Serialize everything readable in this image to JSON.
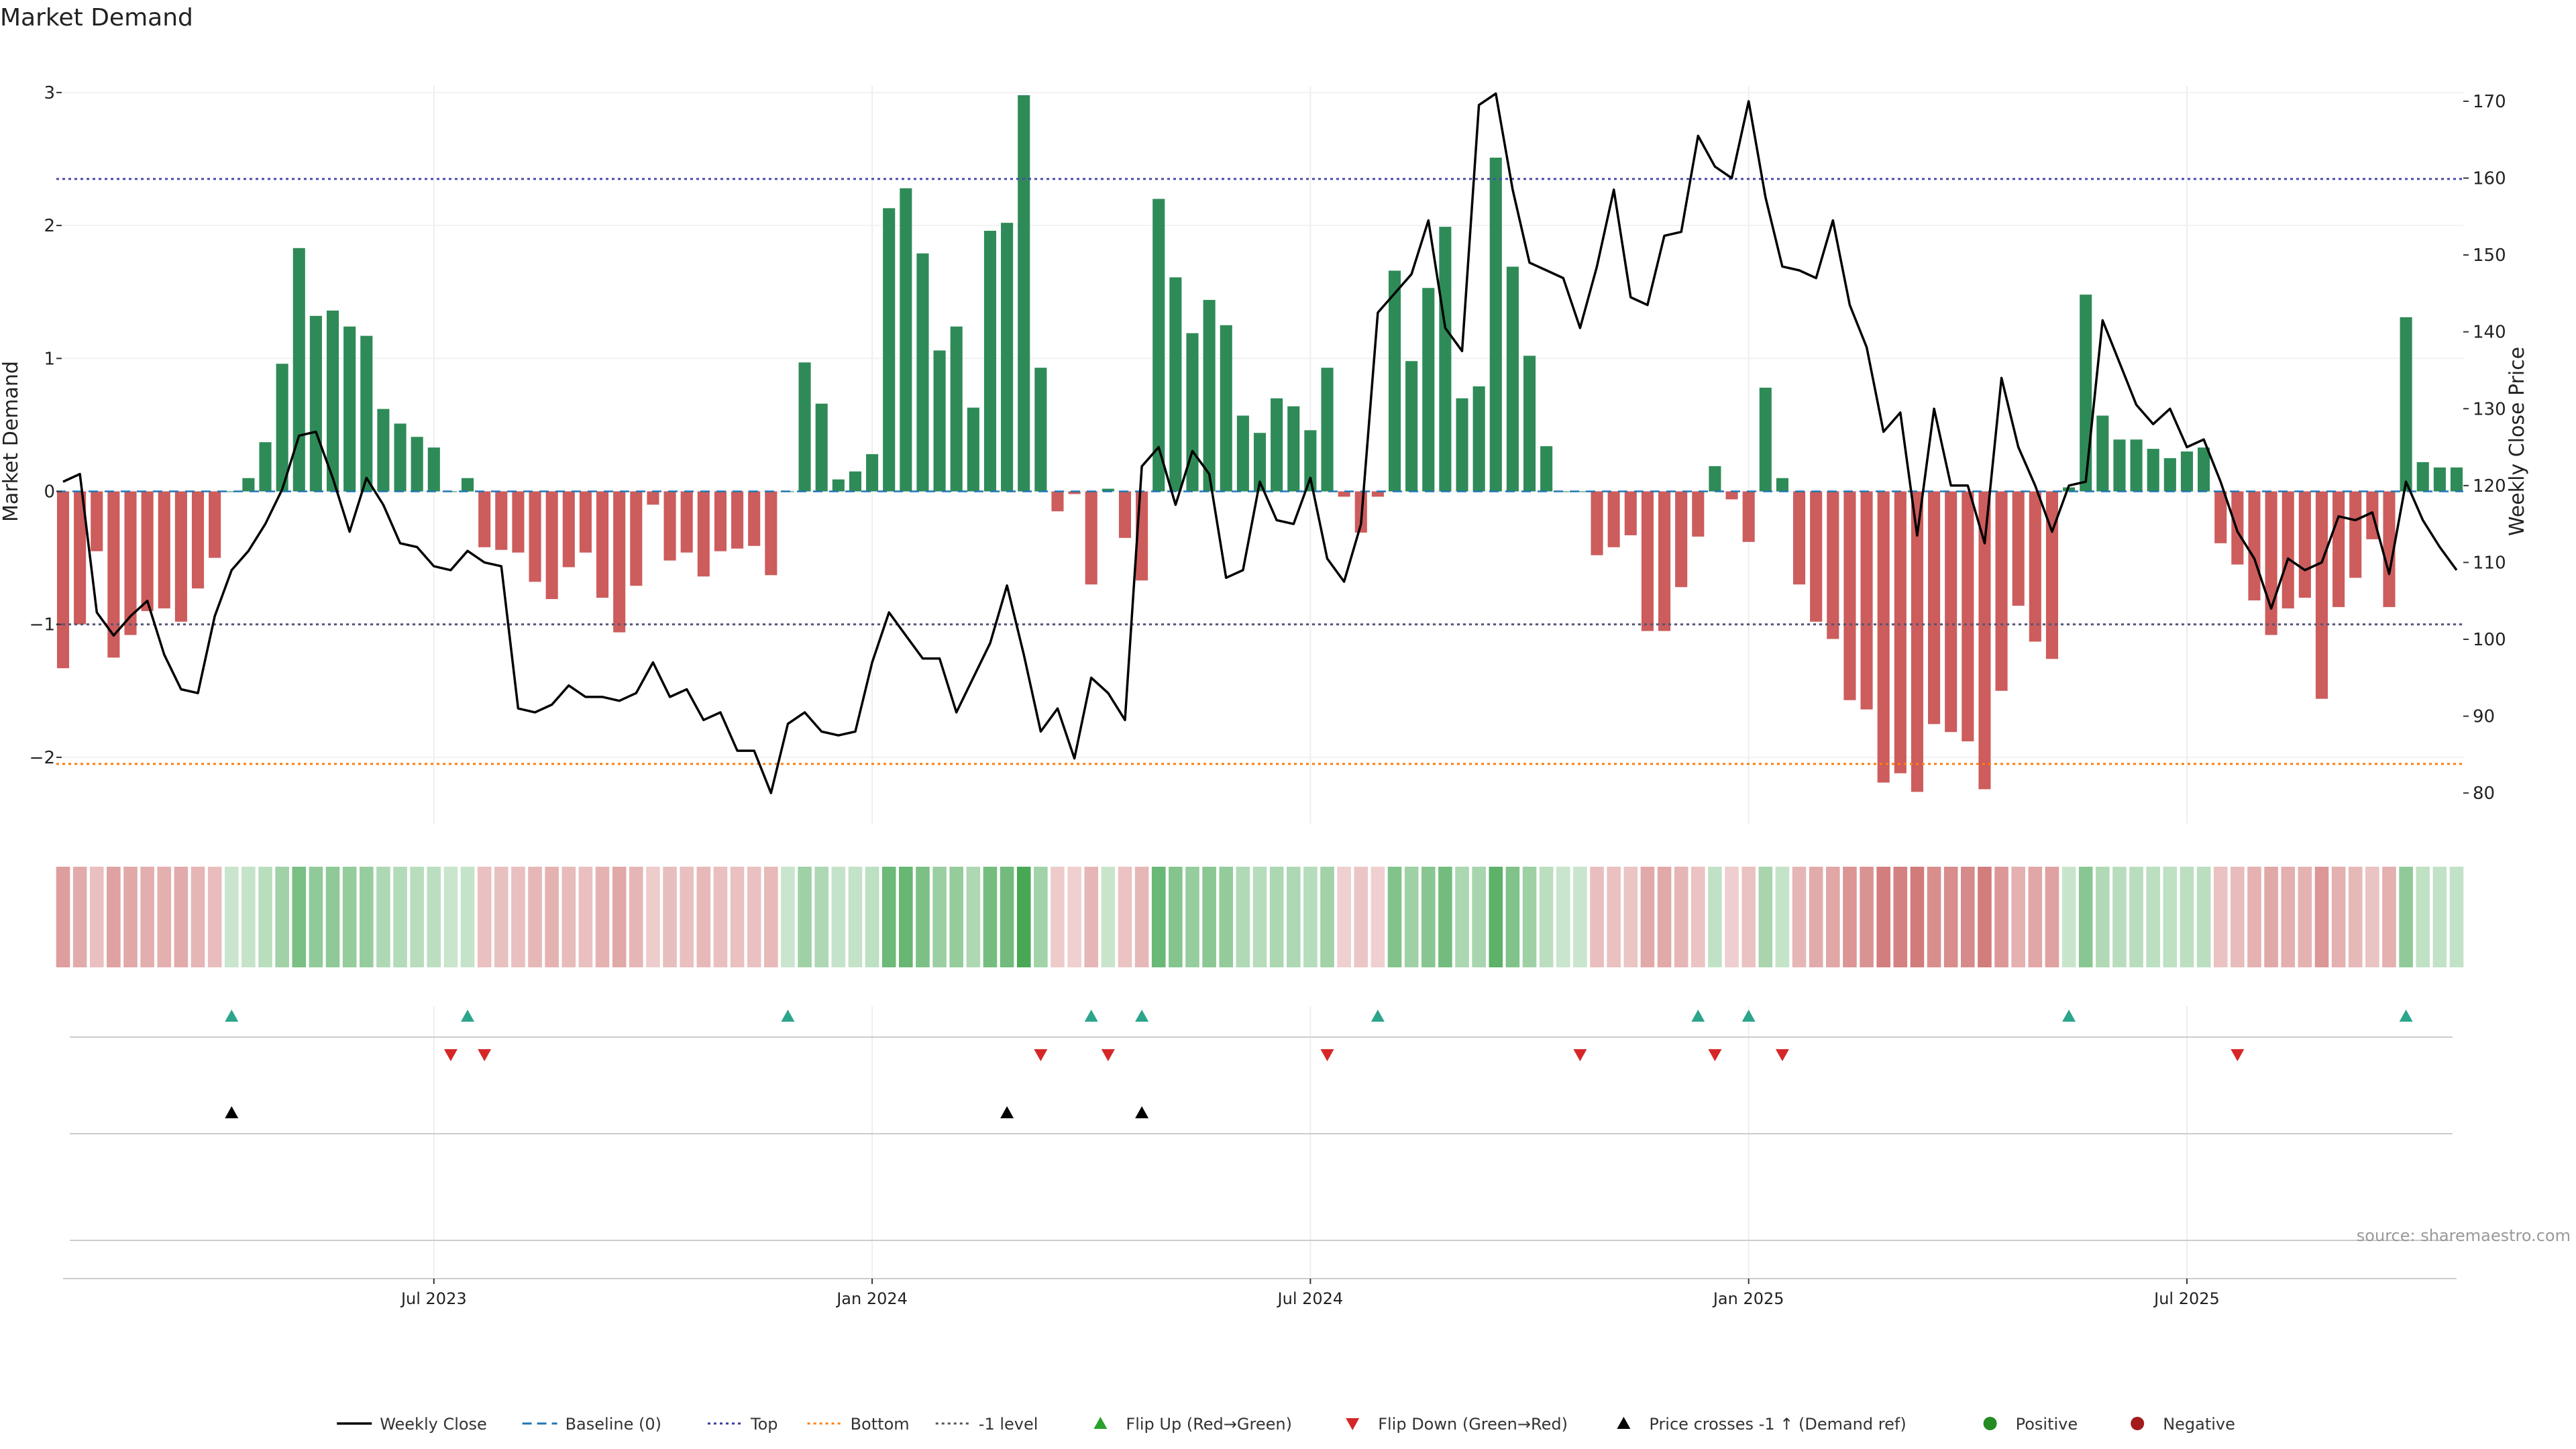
{
  "chart_data": {
    "type": "bar",
    "title": "Market Demand",
    "ylabel_left": "Market Demand",
    "ylabel_right": "Weekly Close Price",
    "ylim_left": [
      -2.5,
      3.05
    ],
    "ylim_right": [
      76,
      172
    ],
    "left_ticks": [
      3,
      2,
      1,
      0,
      -1,
      -2
    ],
    "left_tick_labels": [
      "3",
      "2",
      "1",
      "0",
      "−1",
      "−2"
    ],
    "right_ticks": [
      170,
      160,
      150,
      140,
      130,
      120,
      110,
      100,
      90,
      80
    ],
    "x_ticks": [
      22,
      48,
      74,
      100,
      126
    ],
    "x_tick_labels": [
      "Jul 2023",
      "Jan 2024",
      "Jul 2024",
      "Jan 2025",
      "Jul 2025"
    ],
    "reference_lines": {
      "top": 2.35,
      "bottom": -2.05,
      "minus_one": -1.0,
      "baseline": 0
    },
    "demand": [
      -1.33,
      -1.0,
      -0.45,
      -1.25,
      -1.08,
      -0.9,
      -0.88,
      -0.98,
      -0.73,
      -0.5,
      0,
      0.1,
      0.37,
      0.96,
      1.83,
      1.32,
      1.36,
      1.24,
      1.17,
      0.62,
      0.51,
      0.41,
      0.33,
      0,
      0.1,
      -0.42,
      -0.44,
      -0.46,
      -0.68,
      -0.81,
      -0.57,
      -0.46,
      -0.8,
      -1.06,
      -0.71,
      -0.1,
      -0.52,
      -0.46,
      -0.64,
      -0.45,
      -0.43,
      -0.41,
      -0.63,
      0,
      0.97,
      0.66,
      0.09,
      0.15,
      0.28,
      2.13,
      2.28,
      1.79,
      1.06,
      1.24,
      0.63,
      1.96,
      2.02,
      2.98,
      0.93,
      -0.15,
      -0.02,
      -0.7,
      0.02,
      -0.35,
      -0.67,
      2.2,
      1.61,
      1.19,
      1.44,
      1.25,
      0.57,
      0.44,
      0.7,
      0.64,
      0.46,
      0.93,
      -0.04,
      -0.31,
      -0.04,
      1.66,
      0.98,
      1.53,
      1.99,
      0.7,
      0.79,
      2.51,
      1.69,
      1.02,
      0.34,
      0,
      0,
      -0.48,
      -0.42,
      -0.33,
      -1.05,
      -1.05,
      -0.72,
      -0.34,
      0.19,
      -0.06,
      -0.38,
      0.78,
      0.1,
      -0.7,
      -0.98,
      -1.11,
      -1.57,
      -1.64,
      -2.19,
      -2.12,
      -2.26,
      -1.75,
      -1.81,
      -1.88,
      -2.24,
      -1.5,
      -0.86,
      -1.13,
      -1.26,
      0.03,
      1.48,
      0.57,
      0.39,
      0.39,
      0.32,
      0.25,
      0.3,
      0.33,
      -0.39,
      -0.55,
      -0.82,
      -1.08,
      -0.88,
      -0.8,
      -1.56,
      -0.87,
      -0.65,
      -0.36,
      -0.87,
      1.31,
      0.22,
      0.18,
      0.18
    ],
    "price": [
      120.5,
      121.5,
      103.5,
      100.5,
      103.0,
      105.0,
      98.0,
      93.5,
      93.0,
      103.0,
      109.0,
      111.5,
      115.0,
      119.5,
      126.5,
      127.0,
      121.0,
      114.0,
      121.0,
      117.5,
      112.5,
      112.0,
      109.5,
      109.0,
      111.5,
      110.0,
      109.5,
      91.0,
      90.5,
      91.5,
      94.0,
      92.5,
      92.5,
      92.0,
      93.0,
      97.0,
      92.5,
      93.5,
      89.5,
      90.5,
      85.5,
      85.5,
      80.0,
      89.0,
      90.5,
      88.0,
      87.5,
      88.0,
      97.0,
      103.5,
      100.5,
      97.5,
      97.5,
      90.5,
      95.0,
      99.5,
      107.0,
      98.0,
      88.0,
      91.0,
      84.5,
      95.0,
      93.0,
      89.5,
      122.5,
      125.0,
      117.5,
      124.5,
      121.5,
      108.0,
      109.0,
      120.5,
      115.5,
      115.0,
      121.0,
      110.5,
      107.5,
      115.0,
      142.5,
      145.0,
      147.5,
      154.5,
      140.5,
      137.5,
      169.5,
      171.0,
      158.5,
      149.0,
      148.0,
      147.0,
      140.5,
      148.5,
      158.5,
      144.5,
      143.5,
      152.5,
      153.0,
      165.5,
      161.5,
      160.0,
      170.0,
      157.5,
      148.5,
      148.0,
      147.0,
      154.5,
      143.5,
      138.0,
      127.0,
      129.5,
      113.5,
      130.0,
      120.0,
      120.0,
      112.5,
      134.0,
      125.0,
      120.0,
      114.0,
      120.0,
      120.5,
      141.5,
      136.0,
      130.5,
      128.0,
      130.0,
      125.0,
      126.0,
      120.5,
      114.0,
      110.5,
      104.0,
      110.5,
      109.0,
      110.0,
      116.0,
      115.5,
      116.5,
      108.5,
      120.5,
      115.5,
      112.0,
      109.0
    ],
    "flip_up_weeks": [
      10,
      24,
      43,
      61,
      64,
      78,
      97,
      100,
      119,
      139
    ],
    "flip_down_weeks": [
      23,
      25,
      58,
      62,
      75,
      90,
      98,
      102,
      129
    ],
    "price_cross_weeks": [
      10,
      56,
      64
    ],
    "legend": [
      {
        "label": "Weekly Close",
        "type": "line",
        "color": "#000000"
      },
      {
        "label": "Baseline (0)",
        "type": "dash",
        "color": "#1f77b4"
      },
      {
        "label": "Top",
        "type": "dot",
        "color": "#3a3aa0"
      },
      {
        "label": "Bottom",
        "type": "dot",
        "color": "#ff7f0e"
      },
      {
        "label": "-1 level",
        "type": "dot",
        "color": "#555555"
      },
      {
        "label": "Flip Up (Red→Green)",
        "type": "tri-up",
        "color": "#2ca02c"
      },
      {
        "label": "Flip Down (Green→Red)",
        "type": "tri-down",
        "color": "#d62728"
      },
      {
        "label": "Price crosses -1 ↑ (Demand ref)",
        "type": "tri-up",
        "color": "#000000"
      },
      {
        "label": "Positive",
        "type": "dot-marker",
        "color": "#228b22"
      },
      {
        "label": "Negative",
        "type": "dot-marker",
        "color": "#a31c1c"
      }
    ],
    "colors": {
      "positive": "#2e8b57",
      "negative": "#cd5c5c",
      "price": "#000000",
      "flip_up": "#2ca58d",
      "flip_down": "#d62728",
      "cross": "#000000"
    }
  },
  "source_label": "source: sharemaestro.com"
}
